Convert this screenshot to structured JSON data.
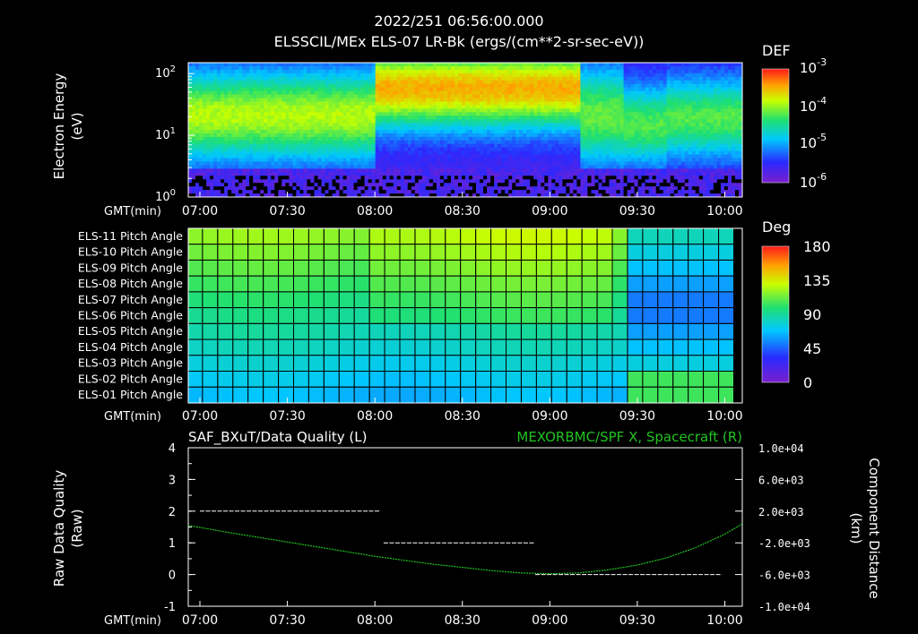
{
  "header": {
    "timestamp": "2022/251 06:56:00.000",
    "title": "ELSSCIL/MEx ELS-07 LR-Bk  (ergs/(cm**2-sr-sec-eV))"
  },
  "colors": {
    "background": "#000000",
    "text": "#ffffff",
    "quality_line": "#ffffff",
    "distance_line": "#22c322",
    "right_title": "#22c322"
  },
  "chart_data": [
    {
      "type": "heatmap",
      "ylabel": "Electron Energy",
      "yunit": "(eV)",
      "yscale": "log",
      "ylim": [
        1,
        150
      ],
      "yticks": [
        {
          "base": "10",
          "exp": "0"
        },
        {
          "base": "10",
          "exp": "1"
        },
        {
          "base": "10",
          "exp": "2"
        }
      ],
      "xlabel": "GMT(min)",
      "xlim": [
        "06:56",
        "10:06"
      ],
      "xticks": [
        "07:00",
        "07:30",
        "08:00",
        "08:30",
        "09:00",
        "09:30",
        "10:00"
      ],
      "colorbar": {
        "label": "DEF",
        "scale": "log",
        "ticks": [
          {
            "base": "10",
            "exp": "-3"
          },
          {
            "base": "10",
            "exp": "-4"
          },
          {
            "base": "10",
            "exp": "-5"
          },
          {
            "base": "10",
            "exp": "-6"
          }
        ]
      }
    },
    {
      "type": "heatmap",
      "rows": [
        "ELS-11 Pitch Angle",
        "ELS-10 Pitch Angle",
        "ELS-09 Pitch Angle",
        "ELS-08 Pitch Angle",
        "ELS-07 Pitch Angle",
        "ELS-06 Pitch Angle",
        "ELS-05 Pitch Angle",
        "ELS-04 Pitch Angle",
        "ELS-03 Pitch Angle",
        "ELS-02 Pitch Angle",
        "ELS-01 Pitch Angle"
      ],
      "xlabel": "GMT(min)",
      "xticks": [
        "07:00",
        "07:30",
        "08:00",
        "08:30",
        "09:00",
        "09:30",
        "10:00"
      ],
      "grid": true,
      "colorbar": {
        "label": "Deg",
        "range": [
          0,
          180
        ],
        "ticks": [
          "180",
          "135",
          "90",
          "45",
          "0"
        ]
      }
    },
    {
      "type": "line",
      "title_left": "SAF_BXuT/Data Quality (L)",
      "title_right": "MEXORBMC/SPF X, Spacecraft (R)",
      "ylabel": "Raw Data Quality",
      "yunit": "(Raw)",
      "ylim": [
        -1,
        4
      ],
      "yticks": [
        "4",
        "3",
        "2",
        "1",
        "0",
        "-1"
      ],
      "y2label": "Component Distance",
      "y2unit": "(km)",
      "y2lim": [
        -10000,
        10000
      ],
      "y2ticks": [
        "1.0e+04",
        "6.0e+03",
        "2.0e+03",
        "-2.0e+03",
        "-6.0e+03",
        "-1.0e+04"
      ],
      "xlabel": "GMT(min)",
      "xticks": [
        "07:00",
        "07:30",
        "08:00",
        "08:30",
        "09:00",
        "09:30",
        "10:00"
      ],
      "series": [
        {
          "name": "SAF_BXuT/Data Quality",
          "axis": "left",
          "segments": [
            {
              "x": [
                "07:00",
                "08:02"
              ],
              "y": 2
            },
            {
              "x": [
                "08:03",
                "08:55"
              ],
              "y": 1
            },
            {
              "x": [
                "08:55",
                "09:59"
              ],
              "y": 0
            }
          ]
        },
        {
          "name": "MEXORBMC/SPF X, Spacecraft",
          "axis": "right",
          "x": [
            "06:56",
            "07:10",
            "07:20",
            "07:30",
            "07:40",
            "07:50",
            "08:00",
            "08:10",
            "08:20",
            "08:30",
            "08:40",
            "08:50",
            "09:00",
            "09:10",
            "09:20",
            "09:30",
            "09:40",
            "09:50",
            "10:00",
            "10:06"
          ],
          "y": [
            200,
            -700,
            -1300,
            -1900,
            -2500,
            -3100,
            -3700,
            -4200,
            -4700,
            -5100,
            -5500,
            -5800,
            -5900,
            -5800,
            -5400,
            -4800,
            -3900,
            -2600,
            -900,
            400
          ]
        }
      ]
    }
  ]
}
